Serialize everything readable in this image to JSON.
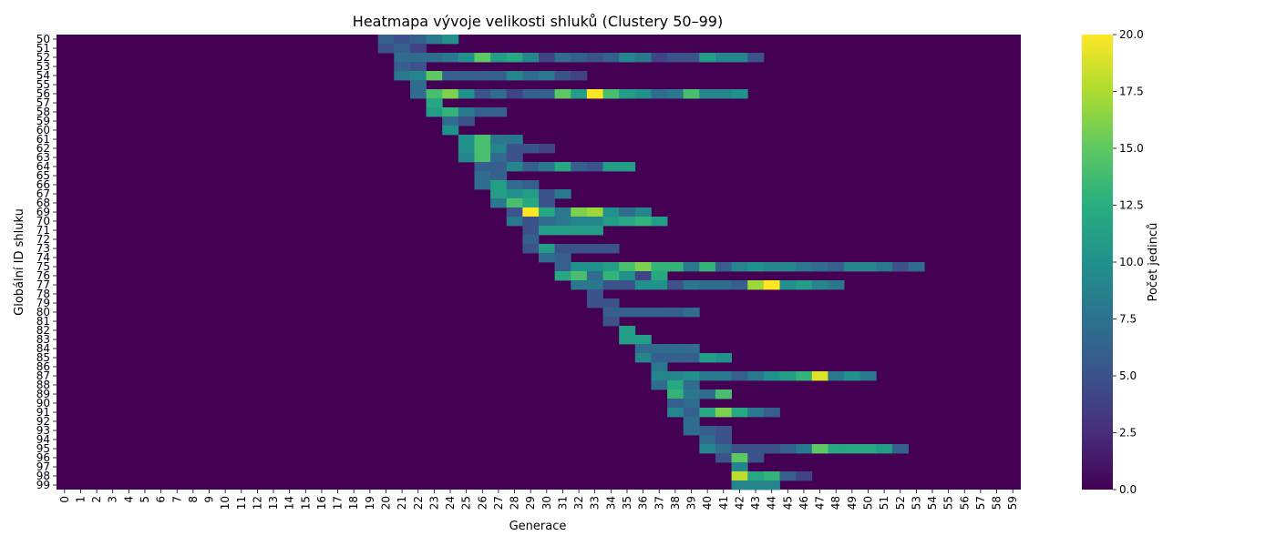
{
  "chart_data": {
    "type": "heatmap",
    "title": "Heatmapa vývoje velikosti shluků (Clustery 50–99)",
    "xlabel": "Generace",
    "ylabel": "Globální ID shluku",
    "colorbar_label": "Počet jedinců",
    "colormap": "viridis",
    "vmin": 0,
    "vmax": 20,
    "colorbar_ticks": [
      "0.0",
      "2.5",
      "5.0",
      "7.5",
      "10.0",
      "12.5",
      "15.0",
      "17.5",
      "20.0"
    ],
    "x": [
      "0",
      "1",
      "2",
      "3",
      "4",
      "5",
      "6",
      "7",
      "8",
      "9",
      "10",
      "11",
      "12",
      "13",
      "14",
      "15",
      "16",
      "17",
      "18",
      "19",
      "20",
      "21",
      "22",
      "23",
      "24",
      "25",
      "26",
      "27",
      "28",
      "29",
      "30",
      "31",
      "32",
      "33",
      "34",
      "35",
      "36",
      "37",
      "38",
      "39",
      "40",
      "41",
      "42",
      "43",
      "44",
      "45",
      "46",
      "47",
      "48",
      "49",
      "50",
      "51",
      "52",
      "53",
      "54",
      "55",
      "56",
      "57",
      "58",
      "59"
    ],
    "y": [
      "50",
      "51",
      "52",
      "53",
      "54",
      "55",
      "56",
      "57",
      "58",
      "59",
      "60",
      "61",
      "62",
      "63",
      "64",
      "65",
      "66",
      "67",
      "68",
      "69",
      "70",
      "71",
      "72",
      "73",
      "74",
      "75",
      "76",
      "77",
      "78",
      "79",
      "80",
      "81",
      "82",
      "83",
      "84",
      "85",
      "86",
      "87",
      "88",
      "89",
      "90",
      "91",
      "92",
      "93",
      "94",
      "95",
      "96",
      "97",
      "98",
      "99"
    ],
    "rows": [
      {
        "start": 20,
        "values": [
          6,
          5,
          6,
          8,
          10
        ]
      },
      {
        "start": 20,
        "values": [
          5,
          6,
          4
        ]
      },
      {
        "start": 21,
        "values": [
          7,
          7,
          7,
          8,
          10,
          15,
          11,
          12,
          9,
          4,
          7,
          6,
          5,
          6,
          9,
          8,
          4,
          5,
          5,
          11,
          9,
          9,
          5
        ]
      },
      {
        "start": 21,
        "values": [
          6,
          5
        ]
      },
      {
        "start": 21,
        "values": [
          8,
          9,
          15,
          6,
          6,
          6,
          6,
          9,
          7,
          8,
          5,
          4
        ]
      },
      {
        "start": 22,
        "values": [
          7
        ]
      },
      {
        "start": 22,
        "values": [
          7,
          14,
          16,
          10,
          5,
          7,
          4,
          6,
          6,
          15,
          11,
          20,
          14,
          11,
          10,
          7,
          8,
          14,
          9,
          9,
          10
        ]
      },
      {
        "start": 23,
        "values": [
          12
        ]
      },
      {
        "start": 23,
        "values": [
          11,
          13,
          8,
          6,
          6
        ]
      },
      {
        "start": 24,
        "values": [
          7,
          5
        ]
      },
      {
        "start": 24,
        "values": [
          10
        ]
      },
      {
        "start": 25,
        "values": [
          10,
          14,
          8,
          8
        ]
      },
      {
        "start": 25,
        "values": [
          10,
          14,
          9,
          5,
          5,
          4
        ]
      },
      {
        "start": 25,
        "values": [
          9,
          14,
          7,
          5
        ]
      },
      {
        "start": 26,
        "values": [
          6,
          6,
          9,
          6,
          8,
          12,
          6,
          5,
          11,
          11
        ]
      },
      {
        "start": 26,
        "values": [
          7,
          6
        ]
      },
      {
        "start": 26,
        "values": [
          7,
          11,
          7,
          6
        ]
      },
      {
        "start": 27,
        "values": [
          11,
          10,
          11,
          5,
          8
        ]
      },
      {
        "start": 27,
        "values": [
          8,
          14,
          12,
          5
        ]
      },
      {
        "start": 28,
        "values": [
          5,
          20,
          12,
          8,
          16,
          17,
          10,
          7,
          9
        ]
      },
      {
        "start": 28,
        "values": [
          8,
          5,
          7,
          8,
          9,
          9,
          11,
          12,
          13,
          11
        ]
      },
      {
        "start": 29,
        "values": [
          5,
          11,
          11,
          11,
          11
        ]
      },
      {
        "start": 29,
        "values": [
          6
        ]
      },
      {
        "start": 29,
        "values": [
          5,
          11,
          5,
          5,
          5,
          5
        ]
      },
      {
        "start": 30,
        "values": [
          7,
          6
        ]
      },
      {
        "start": 31,
        "values": [
          6,
          10,
          10,
          11,
          14,
          16,
          13,
          13,
          8,
          13,
          6,
          9,
          10,
          9,
          9,
          8,
          7,
          6,
          9,
          9,
          8,
          5,
          7
        ]
      },
      {
        "start": 31,
        "values": [
          12,
          14,
          7,
          13,
          10,
          4,
          12
        ]
      },
      {
        "start": 32,
        "values": [
          8,
          8,
          5,
          5,
          10,
          10,
          5,
          8,
          7,
          7,
          6,
          17,
          20,
          10,
          11,
          9,
          8
        ]
      },
      {
        "start": 33,
        "values": [
          5
        ]
      },
      {
        "start": 33,
        "values": [
          5,
          5
        ]
      },
      {
        "start": 34,
        "values": [
          6,
          6,
          6,
          6,
          6,
          7
        ]
      },
      {
        "start": 34,
        "values": [
          5
        ]
      },
      {
        "start": 35,
        "values": [
          11
        ]
      },
      {
        "start": 35,
        "values": [
          11,
          11
        ]
      },
      {
        "start": 36,
        "values": [
          7,
          7,
          7,
          7
        ]
      },
      {
        "start": 36,
        "values": [
          9,
          6,
          6,
          6,
          11,
          10
        ]
      },
      {
        "start": 37,
        "values": [
          8
        ]
      },
      {
        "start": 37,
        "values": [
          9,
          9,
          10,
          8,
          8,
          6,
          8,
          10,
          11,
          13,
          19,
          8,
          10,
          8
        ]
      },
      {
        "start": 37,
        "values": [
          7,
          12,
          7
        ]
      },
      {
        "start": 38,
        "values": [
          13,
          8,
          7,
          14
        ]
      },
      {
        "start": 38,
        "values": [
          6,
          7
        ]
      },
      {
        "start": 38,
        "values": [
          9,
          6,
          12,
          16,
          12,
          8,
          6
        ]
      },
      {
        "start": 39,
        "values": [
          7
        ]
      },
      {
        "start": 39,
        "values": [
          7,
          6,
          5
        ]
      },
      {
        "start": 40,
        "values": [
          7,
          5
        ]
      },
      {
        "start": 40,
        "values": [
          9,
          7,
          5,
          5,
          5,
          6,
          8,
          15,
          12,
          12,
          12,
          11,
          6
        ]
      },
      {
        "start": 41,
        "values": [
          5,
          15,
          5
        ]
      },
      {
        "start": 42,
        "values": [
          9
        ]
      },
      {
        "start": 42,
        "values": [
          18,
          12,
          13,
          6,
          4
        ]
      },
      {
        "start": 42,
        "values": [
          9,
          9,
          9
        ]
      }
    ]
  }
}
